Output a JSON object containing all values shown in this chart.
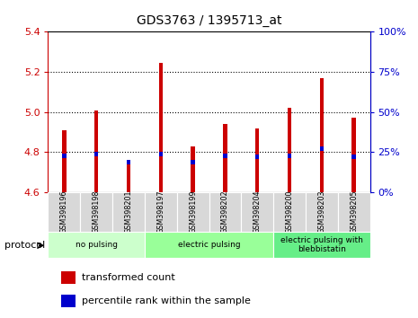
{
  "title": "GDS3763 / 1395713_at",
  "samples": [
    "GSM398196",
    "GSM398198",
    "GSM398201",
    "GSM398197",
    "GSM398199",
    "GSM398202",
    "GSM398204",
    "GSM398200",
    "GSM398203",
    "GSM398205"
  ],
  "transformed_count": [
    4.91,
    5.01,
    4.76,
    5.245,
    4.83,
    4.94,
    4.92,
    5.02,
    5.17,
    4.97
  ],
  "percentile_rank": [
    23,
    24,
    19,
    24,
    19,
    23,
    22,
    23,
    27,
    22
  ],
  "ylim": [
    4.6,
    5.4
  ],
  "y2lim": [
    0,
    100
  ],
  "yticks": [
    4.6,
    4.8,
    5.0,
    5.2,
    5.4
  ],
  "y2ticks": [
    0,
    25,
    50,
    75,
    100
  ],
  "y_color": "#cc0000",
  "y2_color": "#0000cc",
  "bar_color": "#cc0000",
  "percentile_color": "#0000cc",
  "protocols": [
    {
      "label": "no pulsing",
      "start": 0,
      "end": 3,
      "color": "#ccffcc"
    },
    {
      "label": "electric pulsing",
      "start": 3,
      "end": 7,
      "color": "#99ff99"
    },
    {
      "label": "electric pulsing with\nblebbistatin",
      "start": 7,
      "end": 10,
      "color": "#66ee88"
    }
  ],
  "legend_red_label": "transformed count",
  "legend_blue_label": "percentile rank within the sample",
  "protocol_label": "protocol",
  "bar_width": 0.12,
  "baseline": 4.6
}
